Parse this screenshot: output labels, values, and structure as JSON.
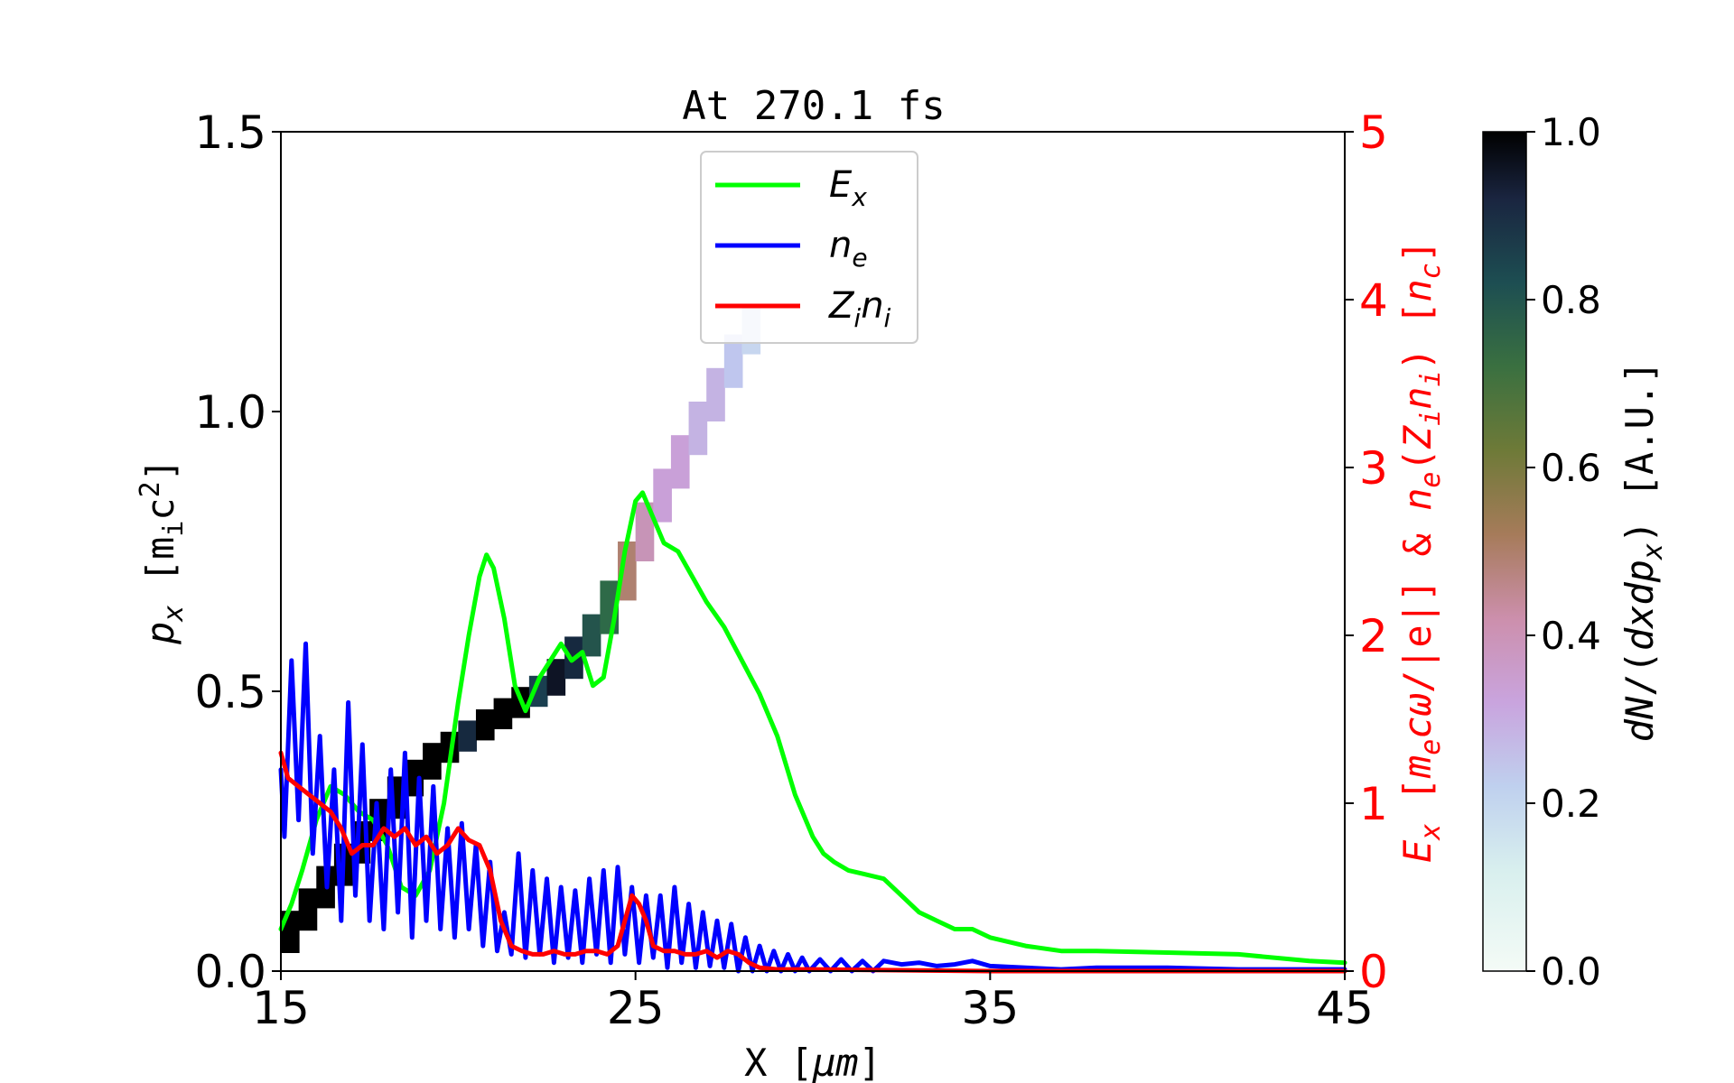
{
  "chart_data": {
    "type": "line",
    "title": "At 270.1 fs",
    "xlabel": "X [μm]",
    "ylabel_left": "p_x [m_i c^2]",
    "ylabel_right": "E_x [m_e c ω/|e|] & n_e(Z_i n_i) [n_c]",
    "colorbar_label": "dN/(dxdp_x) [A.U.]",
    "xlim": [
      15,
      45
    ],
    "ylim_left": [
      0,
      1.5
    ],
    "ylim_right": [
      0,
      5
    ],
    "colorbar_range": [
      0,
      1
    ],
    "x_ticks": [
      "15",
      "25",
      "35",
      "45"
    ],
    "y_ticks_left": [
      "0.0",
      "0.5",
      "1.0",
      "1.5"
    ],
    "y_ticks_right": [
      "0",
      "1",
      "2",
      "3",
      "4",
      "5"
    ],
    "colorbar_ticks": [
      "0.0",
      "0.2",
      "0.4",
      "0.6",
      "0.8",
      "1.0"
    ],
    "legend": {
      "placement": "upper center",
      "entries": [
        {
          "label": "E_x",
          "color": "#00ff00"
        },
        {
          "label": "n_e",
          "color": "#0000ff"
        },
        {
          "label": "Z_i n_i",
          "color": "#ff0000"
        }
      ]
    },
    "colors": {
      "Ex": "#00ff00",
      "ne": "#0000ff",
      "Zini": "#ff0000"
    },
    "series": [
      {
        "name": "E_x",
        "axis": "right",
        "x": [
          15.0,
          15.3,
          15.6,
          16.0,
          16.4,
          16.8,
          17.2,
          17.6,
          18.0,
          18.4,
          18.8,
          19.2,
          19.6,
          20.0,
          20.3,
          20.6,
          20.8,
          21.0,
          21.3,
          21.6,
          21.9,
          22.3,
          22.6,
          22.9,
          23.2,
          23.5,
          23.8,
          24.1,
          24.4,
          24.7,
          25.0,
          25.2,
          25.5,
          25.8,
          26.2,
          26.6,
          27.0,
          27.5,
          28.0,
          28.5,
          29.0,
          29.5,
          30.0,
          30.3,
          30.6,
          31.0,
          31.4,
          32.0,
          32.5,
          33.0,
          33.5,
          34.0,
          34.5,
          35.0,
          36.0,
          37.0,
          38.0,
          40.0,
          42.0,
          44.0,
          45.0
        ],
        "y": [
          0.25,
          0.4,
          0.6,
          0.9,
          1.1,
          1.05,
          0.95,
          0.9,
          0.75,
          0.5,
          0.45,
          0.6,
          1.0,
          1.6,
          2.0,
          2.35,
          2.48,
          2.4,
          2.1,
          1.7,
          1.55,
          1.75,
          1.85,
          1.95,
          1.85,
          1.9,
          1.7,
          1.75,
          2.1,
          2.5,
          2.8,
          2.85,
          2.7,
          2.55,
          2.5,
          2.35,
          2.2,
          2.05,
          1.85,
          1.65,
          1.4,
          1.05,
          0.8,
          0.7,
          0.65,
          0.6,
          0.58,
          0.55,
          0.45,
          0.35,
          0.3,
          0.25,
          0.25,
          0.2,
          0.15,
          0.12,
          0.12,
          0.11,
          0.1,
          0.06,
          0.05
        ]
      },
      {
        "name": "n_e",
        "axis": "right",
        "x": [
          15.0,
          15.1,
          15.3,
          15.5,
          15.7,
          15.9,
          16.1,
          16.3,
          16.5,
          16.7,
          16.9,
          17.1,
          17.3,
          17.5,
          17.7,
          17.9,
          18.1,
          18.3,
          18.5,
          18.7,
          18.9,
          19.1,
          19.3,
          19.5,
          19.7,
          19.9,
          20.1,
          20.3,
          20.5,
          20.7,
          20.9,
          21.1,
          21.3,
          21.5,
          21.7,
          21.9,
          22.1,
          22.3,
          22.5,
          22.7,
          22.9,
          23.1,
          23.3,
          23.5,
          23.7,
          23.9,
          24.1,
          24.3,
          24.5,
          24.7,
          24.9,
          25.1,
          25.3,
          25.5,
          25.7,
          25.9,
          26.1,
          26.3,
          26.5,
          26.7,
          26.9,
          27.1,
          27.3,
          27.5,
          27.7,
          27.9,
          28.1,
          28.3,
          28.5,
          28.7,
          28.9,
          29.1,
          29.3,
          29.5,
          29.7,
          29.9,
          30.2,
          30.5,
          30.8,
          31.1,
          31.4,
          31.7,
          32.0,
          32.5,
          33.0,
          33.5,
          34.0,
          34.5,
          35.0,
          36.0,
          37.0,
          38.0,
          40.0,
          42.0,
          45.0
        ],
        "y": [
          1.2,
          0.8,
          1.85,
          0.9,
          1.95,
          0.7,
          1.4,
          0.5,
          1.2,
          0.3,
          1.6,
          0.45,
          1.35,
          0.3,
          1.0,
          0.25,
          1.2,
          0.35,
          1.3,
          0.2,
          1.15,
          0.3,
          1.1,
          0.25,
          0.85,
          0.2,
          0.88,
          0.25,
          0.75,
          0.15,
          0.65,
          0.12,
          0.35,
          0.1,
          0.7,
          0.08,
          0.6,
          0.1,
          0.55,
          0.05,
          0.5,
          0.08,
          0.48,
          0.05,
          0.55,
          0.1,
          0.6,
          0.05,
          0.62,
          0.1,
          0.5,
          0.05,
          0.45,
          0.08,
          0.45,
          0.02,
          0.5,
          0.05,
          0.4,
          0.02,
          0.35,
          0.03,
          0.3,
          0.02,
          0.28,
          0.0,
          0.2,
          0.0,
          0.15,
          0.0,
          0.12,
          0.0,
          0.1,
          0.0,
          0.08,
          0.0,
          0.07,
          0.0,
          0.07,
          0.0,
          0.06,
          0.0,
          0.06,
          0.04,
          0.05,
          0.03,
          0.04,
          0.06,
          0.03,
          0.02,
          0.01,
          0.02,
          0.02,
          0.01,
          0.01
        ]
      },
      {
        "name": "Z_i n_i",
        "axis": "right",
        "x": [
          15.0,
          15.2,
          15.5,
          15.8,
          16.1,
          16.4,
          16.7,
          17.0,
          17.3,
          17.6,
          17.9,
          18.2,
          18.5,
          18.8,
          19.1,
          19.4,
          19.7,
          20.0,
          20.3,
          20.6,
          20.9,
          21.2,
          21.5,
          21.8,
          22.1,
          22.4,
          22.7,
          23.0,
          23.3,
          23.6,
          23.9,
          24.2,
          24.5,
          24.7,
          24.9,
          25.1,
          25.3,
          25.5,
          25.8,
          26.1,
          26.4,
          26.7,
          27.0,
          27.3,
          27.6,
          27.9,
          28.2,
          28.5,
          29.0,
          30.0,
          35.0,
          45.0
        ],
        "y": [
          1.3,
          1.15,
          1.1,
          1.05,
          1.0,
          0.95,
          0.85,
          0.7,
          0.75,
          0.75,
          0.85,
          0.8,
          0.85,
          0.75,
          0.8,
          0.7,
          0.75,
          0.85,
          0.78,
          0.75,
          0.6,
          0.3,
          0.15,
          0.12,
          0.1,
          0.1,
          0.12,
          0.1,
          0.1,
          0.12,
          0.12,
          0.1,
          0.15,
          0.3,
          0.45,
          0.4,
          0.3,
          0.15,
          0.12,
          0.12,
          0.1,
          0.1,
          0.12,
          0.08,
          0.12,
          0.1,
          0.05,
          0.02,
          0.01,
          0.01,
          0.0,
          0.0
        ]
      },
      {
        "name": "phase-space density",
        "type": "heatmap",
        "axis": "left",
        "x": [
          15.0,
          15.5,
          16.0,
          16.5,
          17.0,
          17.5,
          18.0,
          18.5,
          19.0,
          19.5,
          20.0,
          20.5,
          21.0,
          21.5,
          22.0,
          22.5,
          23.0,
          23.5,
          24.0,
          24.5,
          25.0,
          25.5,
          26.0,
          26.5,
          27.0,
          27.5,
          28.0,
          28.5
        ],
        "y": [
          0.05,
          0.09,
          0.13,
          0.17,
          0.21,
          0.25,
          0.29,
          0.33,
          0.36,
          0.39,
          0.41,
          0.43,
          0.45,
          0.47,
          0.49,
          0.51,
          0.54,
          0.58,
          0.62,
          0.68,
          0.75,
          0.82,
          0.88,
          0.94,
          1.0,
          1.06,
          1.12,
          1.17
        ],
        "value": [
          1.0,
          1.0,
          1.0,
          1.0,
          1.0,
          1.0,
          1.0,
          1.0,
          1.0,
          1.0,
          0.9,
          1.0,
          1.0,
          1.0,
          0.85,
          0.95,
          0.9,
          0.8,
          0.75,
          0.5,
          0.4,
          0.35,
          0.35,
          0.3,
          0.3,
          0.25,
          0.2,
          0.15
        ]
      }
    ]
  }
}
